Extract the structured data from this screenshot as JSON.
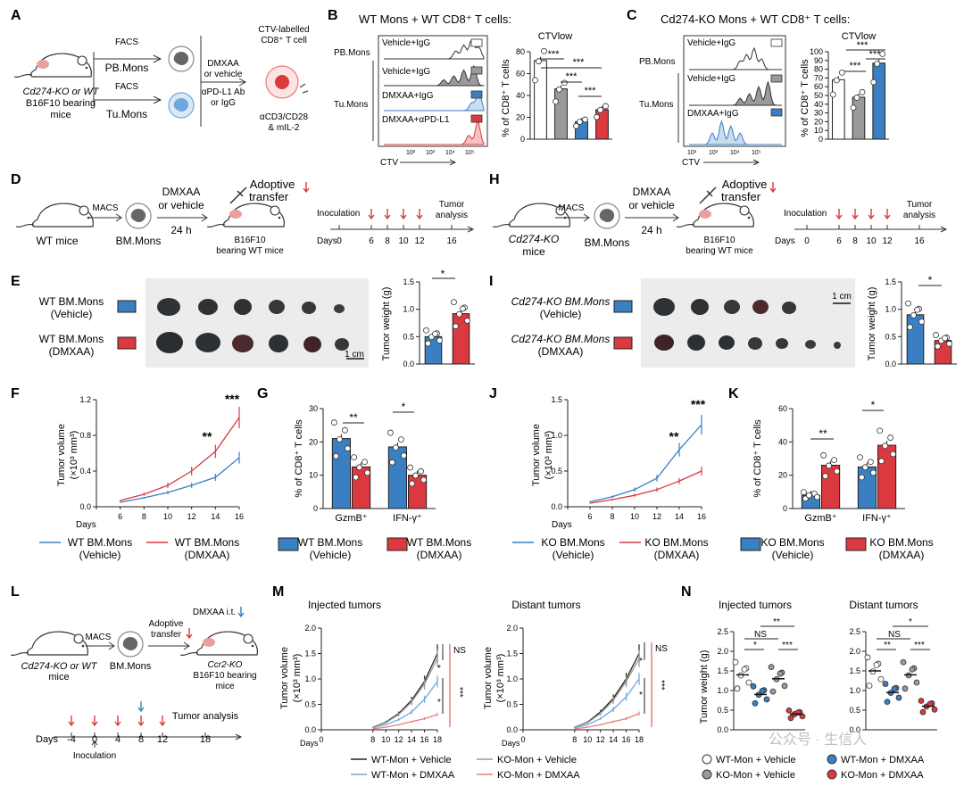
{
  "panels": {
    "A": {
      "letter": "A",
      "mouse_label": [
        "Cd274-KO or WT",
        "B16F10 bearing",
        "mice"
      ],
      "facs_top": "FACS",
      "pb_mons": "PB.Mons",
      "facs_bottom": "FACS",
      "tu_mons": "Tu.Mons",
      "treatment": [
        "DMXAA",
        "or vehicle",
        "αPD-L1 Ab",
        "or IgG"
      ],
      "tcell_label": [
        "CTV-labelled",
        "CD8⁺ T cell"
      ],
      "stim_label": [
        "αCD3/CD28",
        "& mIL-2"
      ]
    },
    "B": {
      "letter": "B",
      "title": "WT Mons + WT CD8⁺ T cells:",
      "pb_mons": "PB.Mons",
      "tu_mons": "Tu.Mons",
      "hist_labels": [
        "Vehicle+IgG",
        "Vehicle+IgG",
        "DMXAA+IgG",
        "DMXAA+αPD-L1"
      ],
      "ctv_axis": "CTV",
      "ctv_ticks": [
        "10²",
        "10³",
        "10⁴",
        "10⁵"
      ],
      "ctv_title": "CTVlow",
      "ylabel": "% of CD8⁺ T cells",
      "sig": [
        "***",
        "***",
        "***",
        "***"
      ]
    },
    "C": {
      "letter": "C",
      "title": "Cd274-KO Mons + WT CD8⁺ T cells:",
      "pb_mons": "PB.Mons",
      "tu_mons": "Tu.Mons",
      "hist_labels": [
        "Vehicle+IgG",
        "Vehicle+IgG",
        "DMXAA+IgG"
      ],
      "ctv_axis": "CTV",
      "ctv_ticks": [
        "10²",
        "10³",
        "10⁴",
        "10⁵"
      ],
      "ctv_title": "CTVlow",
      "ylabel": "% of CD8⁺ T cells",
      "sig": [
        "***",
        "***",
        "***"
      ]
    },
    "D": {
      "letter": "D",
      "mice": "WT mice",
      "macs": "MACS",
      "bm": "BM.Mons",
      "dmxaa": [
        "DMXAA",
        "or vehicle"
      ],
      "time": "24 h",
      "adoptive": [
        "Adoptive",
        "transfer"
      ],
      "recipient": [
        "B16F10",
        "bearing WT mice"
      ],
      "inoculation": "Inoculation",
      "tumor_analysis": [
        "Tumor",
        "analysis"
      ],
      "days_label": "Days",
      "days": [
        "0",
        "6",
        "8",
        "10",
        "12",
        "16"
      ]
    },
    "H": {
      "letter": "H",
      "mice": [
        "Cd274-KO",
        "mice"
      ],
      "macs": "MACS",
      "bm": "BM.Mons",
      "dmxaa": [
        "DMXAA",
        "or vehicle"
      ],
      "time": "24 h",
      "adoptive": [
        "Adoptive",
        "transfer"
      ],
      "recipient": [
        "B16F10",
        "bearing WT mice"
      ],
      "inoculation": "Inoculation",
      "tumor_analysis": [
        "Tumor",
        "analysis"
      ],
      "days_label": "Days",
      "days": [
        "0",
        "6",
        "8",
        "10",
        "12",
        "16"
      ]
    },
    "E": {
      "letter": "E",
      "row1": [
        "WT BM.Mons",
        "(Vehicle)"
      ],
      "row2": [
        "WT BM.Mons",
        "(DMXAA)"
      ],
      "scale": "1 cm",
      "ylabel": "Tumor weight (g)",
      "sig": "*"
    },
    "I": {
      "letter": "I",
      "row1": [
        "Cd274-KO BM.Mons",
        "(Vehicle)"
      ],
      "row2": [
        "Cd274-KO BM.Mons",
        "(DMXAA)"
      ],
      "scale": "1 cm",
      "ylabel": "Tumor weight (g)",
      "sig": "*"
    },
    "F": {
      "letter": "F",
      "ylabel": [
        "Tumor volume",
        "(×10³ mm³)"
      ],
      "xlabel": "Days",
      "sig": [
        "**",
        "***"
      ],
      "legend": [
        [
          "WT BM.Mons",
          "(Vehicle)"
        ],
        [
          "WT BM.Mons",
          "(DMXAA)"
        ]
      ]
    },
    "G": {
      "letter": "G",
      "ylabel": "% of CD8⁺ T cells",
      "sig": [
        "**",
        "*"
      ],
      "legend": [
        [
          "WT BM.Mons",
          "(Vehicle)"
        ],
        [
          "WT BM.Mons",
          "(DMXAA)"
        ]
      ]
    },
    "J": {
      "letter": "J",
      "ylabel": [
        "Tumor volume",
        "(×10³ mm³)"
      ],
      "xlabel": "Days",
      "sig": [
        "**",
        "***"
      ],
      "legend": [
        [
          "KO BM.Mons",
          "(Vehicle)"
        ],
        [
          "KO BM.Mons",
          "(DMXAA)"
        ]
      ]
    },
    "K": {
      "letter": "K",
      "ylabel": "% of CD8⁺ T cells",
      "sig": [
        "**",
        "*"
      ],
      "legend": [
        [
          "KO BM.Mons",
          "(Vehicle)"
        ],
        [
          "KO BM.Mons",
          "(DMXAA)"
        ]
      ]
    },
    "L": {
      "letter": "L",
      "mice": [
        "Cd274-KO or WT",
        "mice"
      ],
      "macs": "MACS",
      "bm": "BM.Mons",
      "adoptive": [
        "Adoptive",
        "transfer"
      ],
      "dmxaa_it": "DMXAA i.t.",
      "recipient": [
        "Ccr2-KO",
        "B16F10 bearing",
        "mice"
      ],
      "tumor_analysis": "Tumor analysis",
      "days_label": "Days",
      "days": [
        "-4",
        "0",
        "4",
        "8",
        "12",
        "18"
      ],
      "inoculation": "Inoculation"
    },
    "M": {
      "letter": "M",
      "titles": [
        "Injected tumors",
        "Distant tumors"
      ],
      "ylabel": [
        "Tumor volume",
        "(×10³ mm³)"
      ],
      "xlabel": "Days",
      "sig_left": [
        "NS",
        "*",
        "*",
        "***"
      ],
      "sig_right": [
        "NS",
        "*",
        "*",
        "***"
      ],
      "legend": [
        "WT-Mon + Vehicle",
        "KO-Mon + Vehicle",
        "WT-Mon + DMXAA",
        "KO-Mon + DMXAA"
      ]
    },
    "N": {
      "letter": "N",
      "titles": [
        "Injected tumors",
        "Distant tumors"
      ],
      "ylabel": "Tumor weight (g)",
      "sig_left": [
        "**",
        "NS",
        "*",
        "***"
      ],
      "sig_right": [
        "*",
        "NS",
        "**",
        "***"
      ],
      "legend": [
        "WT-Mon + Vehicle",
        "WT-Mon + DMXAA",
        "KO-Mon + Vehicle",
        "KO-Mon + DMXAA"
      ]
    }
  },
  "watermark": "公众号 · 生信人",
  "colors": {
    "vehicle_blue": "#3a7fc1",
    "dmxaa_red": "#d9393f",
    "grey": "#9a9a9a",
    "black": "#222222",
    "light_blue": "#6fa8dc",
    "light_red": "#e87b7b"
  },
  "chart_data": [
    {
      "id": "B",
      "type": "bar",
      "categories": [
        "PB Vehicle+IgG",
        "Tu Vehicle+IgG",
        "Tu DMXAA+IgG",
        "Tu DMXAA+αPD-L1"
      ],
      "values": [
        72,
        46,
        16,
        27
      ],
      "ylim": [
        0,
        80
      ],
      "yticks": [
        0,
        20,
        40,
        60,
        80
      ],
      "ylabel": "% of CD8⁺ T cells",
      "title": "CTVlow"
    },
    {
      "id": "C",
      "type": "bar",
      "categories": [
        "PB Vehicle+IgG",
        "Tu Vehicle+IgG",
        "Tu DMXAA+IgG"
      ],
      "values": [
        68,
        48,
        87
      ],
      "ylim": [
        0,
        100
      ],
      "yticks": [
        0,
        10,
        20,
        30,
        40,
        50,
        60,
        70,
        80,
        90,
        100
      ],
      "ylabel": "% of CD8⁺ T cells",
      "title": "CTVlow"
    },
    {
      "id": "E",
      "type": "bar",
      "categories": [
        "Vehicle",
        "DMXAA"
      ],
      "values": [
        0.5,
        0.92
      ],
      "ylim": [
        0,
        1.5
      ],
      "yticks": [
        0.0,
        0.5,
        1.0,
        1.5
      ],
      "ylabel": "Tumor weight (g)"
    },
    {
      "id": "I",
      "type": "bar",
      "categories": [
        "Vehicle",
        "DMXAA"
      ],
      "values": [
        0.9,
        0.43
      ],
      "ylim": [
        0,
        1.5
      ],
      "yticks": [
        0.0,
        0.5,
        1.0,
        1.5
      ],
      "ylabel": "Tumor weight (g)"
    },
    {
      "id": "F",
      "type": "line",
      "x": [
        6,
        8,
        10,
        12,
        14,
        16
      ],
      "series": [
        {
          "name": "WT BM.Mons (Vehicle)",
          "values": [
            0.05,
            0.1,
            0.16,
            0.24,
            0.33,
            0.55
          ]
        },
        {
          "name": "WT BM.Mons (DMXAA)",
          "values": [
            0.07,
            0.14,
            0.24,
            0.4,
            0.62,
            1.0
          ]
        }
      ],
      "xlim": [
        4,
        16
      ],
      "xticks": [
        4,
        6,
        8,
        10,
        12,
        14,
        16
      ],
      "ylim": [
        0,
        1.2
      ],
      "yticks": [
        0.0,
        0.4,
        0.8,
        1.2
      ],
      "xlabel": "Days"
    },
    {
      "id": "G",
      "type": "bar",
      "categories": [
        "GzmB⁺",
        "IFN-γ⁺"
      ],
      "series": [
        {
          "name": "WT BM.Mons (Vehicle)",
          "values": [
            21,
            18.5
          ]
        },
        {
          "name": "WT BM.Mons (DMXAA)",
          "values": [
            12.5,
            10
          ]
        }
      ],
      "ylim": [
        0,
        30
      ],
      "yticks": [
        0,
        10,
        20,
        30
      ],
      "ylabel": "% of CD8⁺ T cells"
    },
    {
      "id": "J",
      "type": "line",
      "x": [
        6,
        8,
        10,
        12,
        14,
        16
      ],
      "series": [
        {
          "name": "KO BM.Mons (Vehicle)",
          "values": [
            0.07,
            0.14,
            0.24,
            0.4,
            0.8,
            1.15
          ]
        },
        {
          "name": "KO BM.Mons (DMXAA)",
          "values": [
            0.05,
            0.1,
            0.16,
            0.24,
            0.36,
            0.5
          ]
        }
      ],
      "xlim": [
        4,
        16
      ],
      "xticks": [
        4,
        6,
        8,
        10,
        12,
        14,
        16
      ],
      "ylim": [
        0,
        1.5
      ],
      "yticks": [
        0.0,
        0.5,
        1.0,
        1.5
      ],
      "xlabel": "Days"
    },
    {
      "id": "K",
      "type": "bar",
      "categories": [
        "GzmB⁺",
        "IFN-γ⁺"
      ],
      "series": [
        {
          "name": "KO BM.Mons (Vehicle)",
          "values": [
            8,
            25
          ]
        },
        {
          "name": "KO BM.Mons (DMXAA)",
          "values": [
            26,
            38
          ]
        }
      ],
      "ylim": [
        0,
        60
      ],
      "yticks": [
        0,
        20,
        40,
        60
      ],
      "ylabel": "% of CD8⁺ T cells"
    },
    {
      "id": "M-injected",
      "type": "line",
      "title": "Injected tumors",
      "x": [
        8,
        10,
        12,
        14,
        16,
        18
      ],
      "series": [
        {
          "name": "WT-Mon + Vehicle",
          "values": [
            0.05,
            0.15,
            0.32,
            0.58,
            0.95,
            1.5
          ]
        },
        {
          "name": "KO-Mon + Vehicle",
          "values": [
            0.05,
            0.14,
            0.3,
            0.55,
            0.9,
            1.4
          ]
        },
        {
          "name": "WT-Mon + DMXAA",
          "values": [
            0.04,
            0.1,
            0.2,
            0.35,
            0.6,
            0.95
          ]
        },
        {
          "name": "KO-Mon + DMXAA",
          "values": [
            0.02,
            0.05,
            0.1,
            0.16,
            0.22,
            0.3
          ]
        }
      ],
      "xticks": [
        0,
        8,
        10,
        12,
        14,
        16,
        18
      ],
      "ylim": [
        0,
        2.0
      ],
      "yticks": [
        0.0,
        0.5,
        1.0,
        1.5,
        2.0
      ],
      "xlabel": "Days"
    },
    {
      "id": "M-distant",
      "type": "line",
      "title": "Distant tumors",
      "x": [
        8,
        10,
        12,
        14,
        16,
        18
      ],
      "series": [
        {
          "name": "WT-Mon + Vehicle",
          "values": [
            0.05,
            0.15,
            0.35,
            0.62,
            1.0,
            1.5
          ]
        },
        {
          "name": "KO-Mon + Vehicle",
          "values": [
            0.05,
            0.14,
            0.32,
            0.58,
            0.95,
            1.4
          ]
        },
        {
          "name": "WT-Mon + DMXAA",
          "values": [
            0.04,
            0.1,
            0.22,
            0.4,
            0.65,
            1.0
          ]
        },
        {
          "name": "KO-Mon + DMXAA",
          "values": [
            0.02,
            0.05,
            0.1,
            0.16,
            0.22,
            0.32
          ]
        }
      ],
      "xticks": [
        0,
        8,
        10,
        12,
        14,
        16,
        18
      ],
      "ylim": [
        0,
        2.0
      ],
      "yticks": [
        0.0,
        0.5,
        1.0,
        1.5,
        2.0
      ],
      "xlabel": "Days"
    },
    {
      "id": "N-injected",
      "type": "scatter",
      "title": "Injected tumors",
      "categories": [
        "WT-Mon + Vehicle",
        "WT-Mon + DMXAA",
        "KO-Mon + Vehicle",
        "KO-Mon + DMXAA"
      ],
      "values": [
        1.4,
        0.9,
        1.3,
        0.4
      ],
      "ylim": [
        0,
        2.5
      ],
      "yticks": [
        0.0,
        0.5,
        1.0,
        1.5,
        2.0,
        2.5
      ],
      "ylabel": "Tumor weight (g)"
    },
    {
      "id": "N-distant",
      "type": "scatter",
      "title": "Distant tumors",
      "categories": [
        "WT-Mon + Vehicle",
        "WT-Mon + DMXAA",
        "KO-Mon + Vehicle",
        "KO-Mon + DMXAA"
      ],
      "values": [
        1.5,
        0.95,
        1.4,
        0.6
      ],
      "ylim": [
        0,
        2.5
      ],
      "yticks": [
        0.0,
        0.5,
        1.0,
        1.5,
        2.0,
        2.5
      ],
      "ylabel": "Tumor weight (g)"
    }
  ]
}
